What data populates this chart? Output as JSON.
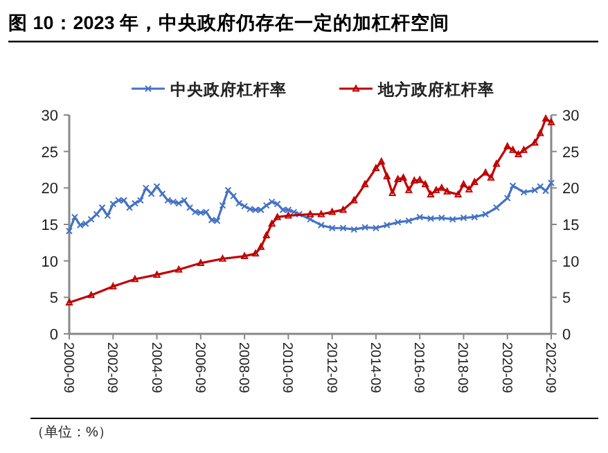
{
  "chart_data": {
    "type": "line",
    "title": "图 10：2023 年，中央政府仍存在一定的加杠杆空间",
    "annotations": [
      "（单位：%）"
    ],
    "xlim": [
      "2000-09",
      "2022-09"
    ],
    "xticks": [
      "2000-09",
      "2002-09",
      "2004-09",
      "2006-09",
      "2008-09",
      "2010-09",
      "2012-09",
      "2014-09",
      "2016-09",
      "2018-09",
      "2020-09",
      "2022-09"
    ],
    "ylim": [
      0,
      30
    ],
    "yticks": [
      0,
      5,
      10,
      15,
      20,
      25,
      30
    ],
    "y2lim": [
      0,
      30
    ],
    "y2ticks": [
      0,
      5,
      10,
      15,
      20,
      25,
      30
    ],
    "grid": false,
    "legend": "top",
    "line_style": "solid",
    "series": [
      {
        "name": "中央政府杠杆率",
        "color": "#4472c4",
        "marker": "cross",
        "x": [
          "2000-09",
          "2000-12",
          "2001-03",
          "2001-06",
          "2001-09",
          "2001-12",
          "2002-03",
          "2002-06",
          "2002-09",
          "2002-12",
          "2003-03",
          "2003-06",
          "2003-09",
          "2003-12",
          "2004-03",
          "2004-06",
          "2004-09",
          "2004-12",
          "2005-03",
          "2005-06",
          "2005-09",
          "2005-12",
          "2006-03",
          "2006-06",
          "2006-09",
          "2006-12",
          "2007-03",
          "2007-06",
          "2007-09",
          "2007-12",
          "2008-03",
          "2008-06",
          "2008-09",
          "2008-12",
          "2009-03",
          "2009-06",
          "2009-09",
          "2009-12",
          "2010-03",
          "2010-06",
          "2010-09",
          "2010-12",
          "2011-03",
          "2011-09",
          "2012-03",
          "2012-09",
          "2013-03",
          "2013-09",
          "2014-03",
          "2014-09",
          "2015-03",
          "2015-09",
          "2016-03",
          "2016-09",
          "2017-03",
          "2017-09",
          "2018-03",
          "2018-09",
          "2019-03",
          "2019-09",
          "2020-03",
          "2020-09",
          "2020-12",
          "2021-06",
          "2021-12",
          "2022-03",
          "2022-06",
          "2022-09"
        ],
        "values": [
          14.1,
          16.0,
          14.9,
          15.1,
          15.7,
          16.4,
          17.3,
          16.2,
          17.8,
          18.3,
          18.3,
          17.3,
          17.9,
          18.3,
          20.0,
          19.2,
          20.2,
          19.2,
          18.3,
          18.1,
          17.9,
          18.3,
          17.3,
          16.7,
          16.6,
          16.7,
          15.6,
          15.5,
          17.6,
          19.7,
          18.9,
          17.9,
          17.5,
          17.1,
          17.0,
          17.0,
          17.6,
          18.1,
          17.8,
          17.0,
          17.0,
          16.7,
          16.4,
          15.7,
          14.9,
          14.5,
          14.5,
          14.3,
          14.6,
          14.5,
          14.9,
          15.3,
          15.5,
          16.0,
          15.8,
          15.9,
          15.7,
          15.9,
          16.0,
          16.4,
          17.3,
          18.6,
          20.3,
          19.4,
          19.7,
          20.2,
          19.6,
          20.7
        ]
      },
      {
        "name": "地方政府杠杆率",
        "color": "#c00000",
        "marker": "triangle",
        "x": [
          "2000-09",
          "2001-09",
          "2002-09",
          "2003-09",
          "2004-09",
          "2005-09",
          "2006-09",
          "2007-09",
          "2008-09",
          "2009-03",
          "2009-06",
          "2009-09",
          "2009-12",
          "2010-03",
          "2010-09",
          "2011-09",
          "2012-03",
          "2012-09",
          "2013-03",
          "2013-09",
          "2014-03",
          "2014-09",
          "2014-12",
          "2015-03",
          "2015-06",
          "2015-09",
          "2015-12",
          "2016-03",
          "2016-06",
          "2016-09",
          "2016-12",
          "2017-03",
          "2017-06",
          "2017-09",
          "2017-12",
          "2018-06",
          "2018-09",
          "2018-12",
          "2019-03",
          "2019-09",
          "2019-12",
          "2020-03",
          "2020-09",
          "2020-12",
          "2021-03",
          "2021-06",
          "2021-12",
          "2022-03",
          "2022-06",
          "2022-09"
        ],
        "values": [
          4.3,
          5.3,
          6.5,
          7.5,
          8.1,
          8.8,
          9.7,
          10.3,
          10.65,
          11.0,
          11.9,
          13.5,
          15.1,
          16.0,
          16.2,
          16.4,
          16.4,
          16.7,
          17.0,
          18.3,
          20.5,
          22.7,
          23.6,
          21.6,
          19.3,
          21.2,
          21.4,
          19.7,
          21.0,
          21.1,
          20.5,
          19.1,
          19.7,
          20.0,
          19.5,
          19.1,
          20.5,
          19.8,
          20.8,
          22.1,
          21.4,
          23.3,
          25.7,
          25.2,
          24.6,
          25.2,
          26.2,
          27.5,
          29.5,
          29.0
        ]
      }
    ]
  }
}
